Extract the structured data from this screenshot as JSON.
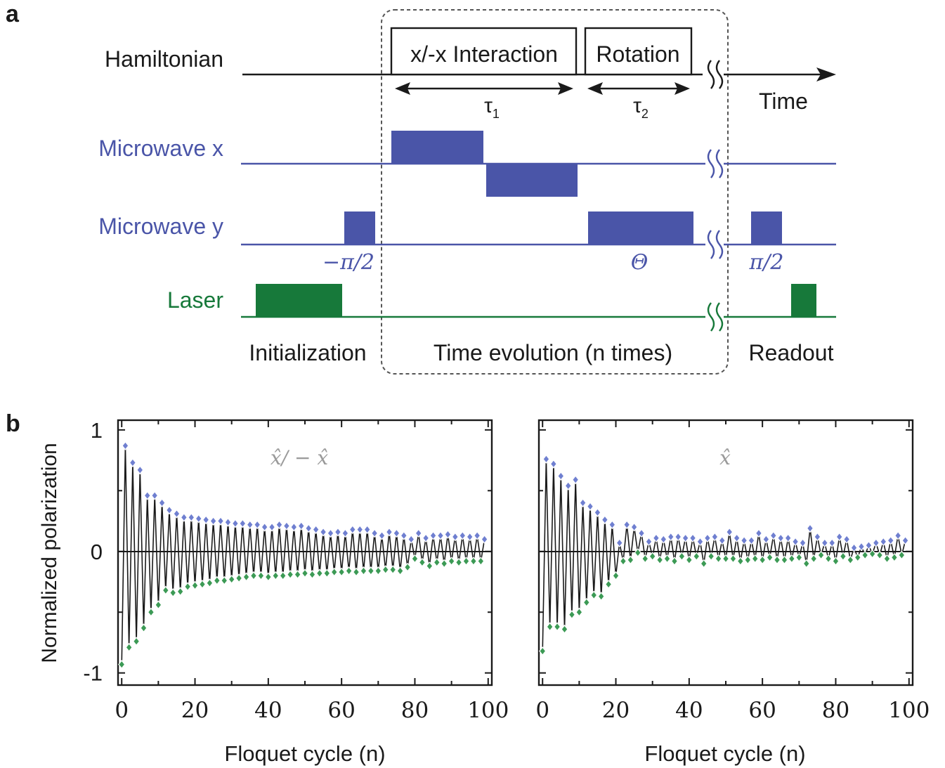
{
  "colors": {
    "black": "#1a1a1a",
    "microwave": "#4a55a8",
    "laser": "#17793a",
    "dash": "#555555",
    "marker_high": "#6f7fd0",
    "marker_low": "#3c9a55",
    "inner_title": "#9a9a9a"
  },
  "panel_a": {
    "label": "a",
    "rows": {
      "hamiltonian": "Hamiltonian",
      "microwave_x": "Microwave x",
      "microwave_y": "Microwave y",
      "laser": "Laser"
    },
    "boxes": {
      "interaction": "x/-x Interaction",
      "rotation": "Rotation"
    },
    "tau1": "τ",
    "tau1_sub": "1",
    "tau2": "τ",
    "tau2_sub": "2",
    "time_label": "Time",
    "pulse_labels": {
      "minus_pi_half": "−π/2",
      "theta": "Θ",
      "pi_half": "π/2"
    },
    "phases": {
      "initialization": "Initialization",
      "evolution": "Time evolution (n times)",
      "readout": "Readout"
    }
  },
  "panel_b": {
    "label": "b",
    "ylabel": "Normalized polarization",
    "xlabel": "Floquet cycle (n)"
  },
  "chart_data": [
    {
      "type": "line",
      "title": "x̂/ − x̂",
      "xlabel": "Floquet cycle (n)",
      "ylabel": "Normalized polarization",
      "xlim": [
        -1,
        101
      ],
      "ylim": [
        -1.1,
        1.08
      ],
      "xticks": [
        0,
        20,
        40,
        60,
        80,
        100
      ],
      "yticks": [
        -1,
        0,
        1
      ],
      "ytick_labels": [
        "-1",
        "0",
        "1"
      ],
      "grid": false,
      "x": [
        0,
        1,
        2,
        3,
        4,
        5,
        6,
        7,
        8,
        9,
        10,
        11,
        12,
        13,
        14,
        15,
        16,
        17,
        18,
        19,
        20,
        21,
        22,
        23,
        24,
        25,
        26,
        27,
        28,
        29,
        30,
        31,
        32,
        33,
        34,
        35,
        36,
        37,
        38,
        39,
        40,
        41,
        42,
        43,
        44,
        45,
        46,
        47,
        48,
        49,
        50,
        51,
        52,
        53,
        54,
        55,
        56,
        57,
        58,
        59,
        60,
        61,
        62,
        63,
        64,
        65,
        66,
        67,
        68,
        69,
        70,
        71,
        72,
        73,
        74,
        75,
        76,
        77,
        78,
        79,
        80,
        81,
        82,
        83,
        84,
        85,
        86,
        87,
        88,
        89,
        90,
        91,
        92,
        93,
        94,
        95,
        96,
        97,
        98,
        99
      ],
      "series": [
        {
          "values": [
            -0.93,
            0.87,
            -0.79,
            0.73,
            -0.74,
            0.67,
            -0.63,
            0.46,
            -0.5,
            0.46,
            -0.44,
            0.4,
            -0.32,
            0.34,
            -0.34,
            0.31,
            -0.33,
            0.28,
            -0.29,
            0.28,
            -0.28,
            0.27,
            -0.27,
            0.26,
            -0.26,
            0.25,
            -0.24,
            0.25,
            -0.24,
            0.24,
            -0.23,
            0.23,
            -0.22,
            0.23,
            -0.21,
            0.22,
            -0.2,
            0.22,
            -0.2,
            0.2,
            -0.21,
            0.2,
            -0.2,
            0.22,
            -0.2,
            0.21,
            -0.19,
            0.2,
            -0.19,
            0.21,
            -0.18,
            0.19,
            -0.19,
            0.18,
            -0.18,
            0.16,
            -0.18,
            0.15,
            -0.17,
            0.16,
            -0.17,
            0.15,
            -0.16,
            0.18,
            -0.17,
            0.18,
            -0.16,
            0.18,
            -0.16,
            0.15,
            -0.16,
            0.13,
            -0.15,
            0.16,
            -0.15,
            0.15,
            -0.16,
            0.13,
            -0.13,
            0.1,
            -0.06,
            0.15,
            -0.09,
            0.11,
            -0.12,
            0.13,
            -0.09,
            0.13,
            -0.1,
            0.14,
            -0.08,
            0.12,
            -0.09,
            0.13,
            -0.08,
            0.12,
            -0.08,
            0.13,
            -0.08,
            0.1
          ]
        }
      ]
    },
    {
      "type": "line",
      "title": "x̂",
      "xlabel": "Floquet cycle (n)",
      "ylabel": "",
      "xlim": [
        -1,
        101
      ],
      "ylim": [
        -1.1,
        1.08
      ],
      "xticks": [
        0,
        20,
        40,
        60,
        80,
        100
      ],
      "yticks": [
        -1,
        0,
        1
      ],
      "grid": false,
      "x": [
        0,
        1,
        2,
        3,
        4,
        5,
        6,
        7,
        8,
        9,
        10,
        11,
        12,
        13,
        14,
        15,
        16,
        17,
        18,
        19,
        20,
        21,
        22,
        23,
        24,
        25,
        26,
        27,
        28,
        29,
        30,
        31,
        32,
        33,
        34,
        35,
        36,
        37,
        38,
        39,
        40,
        41,
        42,
        43,
        44,
        45,
        46,
        47,
        48,
        49,
        50,
        51,
        52,
        53,
        54,
        55,
        56,
        57,
        58,
        59,
        60,
        61,
        62,
        63,
        64,
        65,
        66,
        67,
        68,
        69,
        70,
        71,
        72,
        73,
        74,
        75,
        76,
        77,
        78,
        79,
        80,
        81,
        82,
        83,
        84,
        85,
        86,
        87,
        88,
        89,
        90,
        91,
        92,
        93,
        94,
        95,
        96,
        97,
        98,
        99
      ],
      "series": [
        {
          "values": [
            -0.82,
            0.76,
            -0.62,
            0.72,
            -0.62,
            0.62,
            -0.64,
            0.54,
            -0.52,
            0.59,
            -0.5,
            0.4,
            -0.42,
            0.37,
            -0.36,
            0.32,
            -0.37,
            0.26,
            -0.27,
            0.22,
            -0.2,
            0.07,
            -0.08,
            0.22,
            -0.07,
            0.2,
            -0.01,
            0.15,
            -0.06,
            0.08,
            -0.04,
            0.11,
            -0.07,
            0.1,
            -0.06,
            0.12,
            -0.08,
            0.12,
            -0.04,
            0.11,
            -0.07,
            0.11,
            -0.04,
            0.08,
            -0.1,
            0.11,
            -0.04,
            0.12,
            -0.06,
            0.09,
            -0.06,
            0.16,
            -0.06,
            0.11,
            -0.08,
            0.09,
            -0.07,
            0.09,
            -0.06,
            0.15,
            -0.07,
            0.1,
            -0.05,
            0.13,
            -0.07,
            0.11,
            -0.07,
            0.11,
            -0.06,
            0.08,
            -0.05,
            0.07,
            -0.1,
            0.19,
            -0.06,
            0.12,
            -0.03,
            0.07,
            -0.06,
            0.07,
            -0.08,
            0.12,
            -0.04,
            0.1,
            -0.07,
            0.03,
            -0.05,
            0.04,
            -0.03,
            0.05,
            -0.02,
            0.07,
            -0.03,
            0.08,
            -0.06,
            0.09,
            -0.05,
            0.13,
            -0.03,
            0.09
          ]
        }
      ]
    }
  ]
}
